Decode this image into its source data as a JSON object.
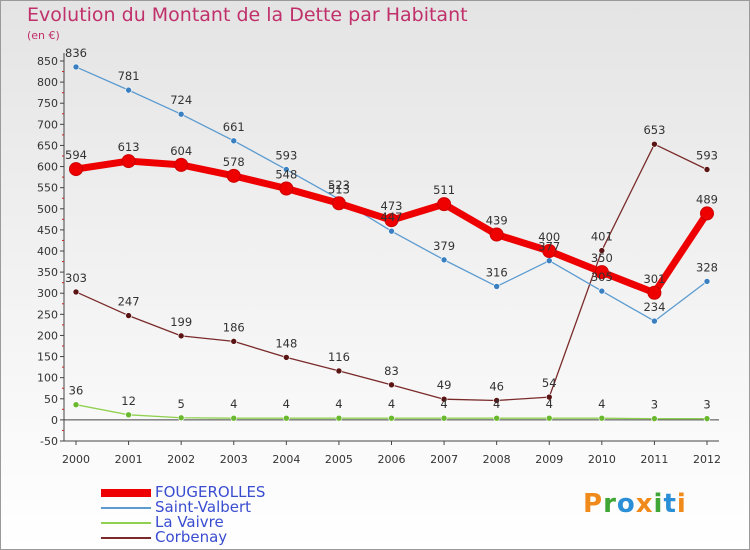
{
  "title": "Evolution du Montant de la Dette par Habitant",
  "unit_label": "(en €)",
  "logo_text": "Proxiti",
  "chart_data": {
    "type": "line",
    "x": [
      "2000",
      "2001",
      "2002",
      "2003",
      "2004",
      "2005",
      "2006",
      "2007",
      "2008",
      "2009",
      "2010",
      "2011",
      "2012"
    ],
    "ylim": [
      -50,
      850
    ],
    "yticks": [
      -50,
      0,
      50,
      100,
      150,
      200,
      250,
      300,
      350,
      400,
      450,
      500,
      550,
      600,
      650,
      700,
      750,
      800,
      850
    ],
    "grid": false,
    "legend_position": "bottom-left",
    "series": [
      {
        "name": "FOUGEROLLES",
        "color": "#ee0000",
        "values": [
          594,
          613,
          604,
          578,
          548,
          513,
          473,
          511,
          439,
          400,
          350,
          301,
          489
        ],
        "labels": [
          "594",
          "613",
          "604",
          "578",
          "548",
          "513",
          "473",
          "511",
          "439",
          "400",
          "350",
          "301",
          "489"
        ]
      },
      {
        "name": "Saint-Valbert",
        "color": "#5b9bd0",
        "values": [
          836,
          781,
          724,
          661,
          593,
          523,
          447,
          379,
          316,
          377,
          305,
          234,
          328
        ],
        "labels": [
          "836",
          "781",
          "724",
          "661",
          "593",
          "523",
          "447",
          "379",
          "316",
          "377",
          "305",
          "234",
          "328"
        ]
      },
      {
        "name": "La Vaivre",
        "color": "#8fd14f",
        "values": [
          36,
          12,
          5,
          4,
          4,
          4,
          4,
          4,
          4,
          4,
          4,
          3,
          3
        ],
        "labels": [
          "36",
          "12",
          "5",
          "4",
          "4",
          "4",
          "4",
          "4",
          "4",
          "4",
          "4",
          "3",
          "3"
        ]
      },
      {
        "name": "Corbenay",
        "color": "#7a2a2a",
        "values": [
          303,
          247,
          199,
          186,
          148,
          116,
          83,
          49,
          46,
          54,
          401,
          653,
          593
        ],
        "labels": [
          "303",
          "247",
          "199",
          "186",
          "148",
          "116",
          "83",
          "49",
          "46",
          "54",
          "401",
          "653",
          "593"
        ]
      }
    ]
  }
}
